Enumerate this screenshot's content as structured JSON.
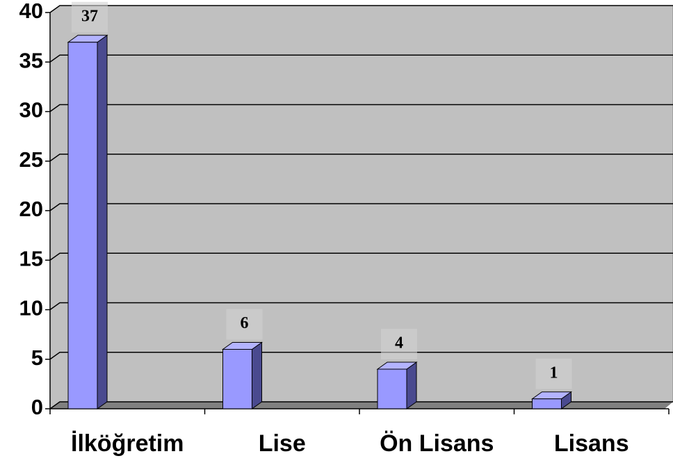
{
  "chart_data": {
    "type": "bar",
    "categories": [
      "İlköğretim",
      "Lise",
      "Ön Lisans",
      "Lisans"
    ],
    "values": [
      37,
      6,
      4,
      1
    ],
    "color": "#9999ff",
    "ylim": [
      0,
      40
    ],
    "yticks": [
      0,
      5,
      10,
      15,
      20,
      25,
      30,
      35,
      40
    ],
    "grid": true
  }
}
